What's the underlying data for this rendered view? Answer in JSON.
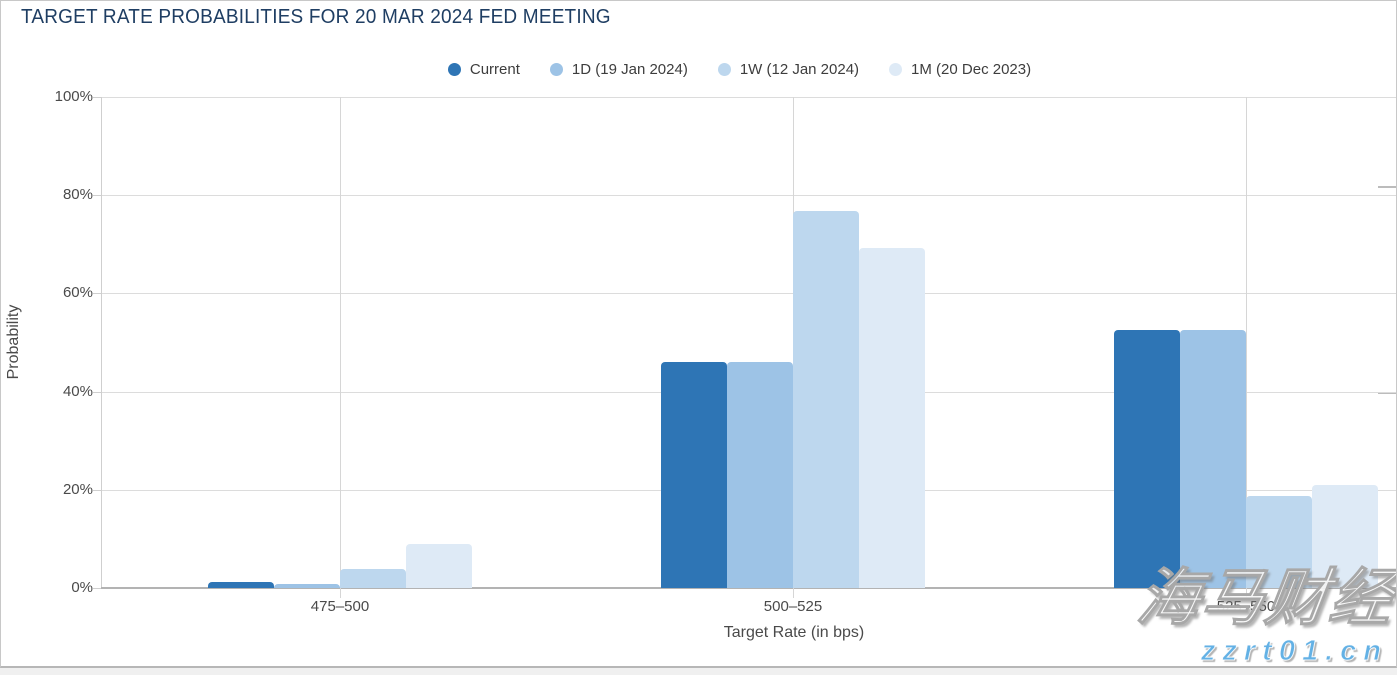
{
  "chart_data": {
    "type": "bar",
    "title": "TARGET RATE PROBABILITIES FOR 20 MAR 2024 FED MEETING",
    "xlabel": "Target Rate (in bps)",
    "ylabel": "Probability",
    "ylim": [
      0,
      100
    ],
    "grid": true,
    "legend_position": "top-center",
    "yticks": [
      "0%",
      "20%",
      "40%",
      "60%",
      "80%",
      "100%"
    ],
    "categories": [
      "475–500",
      "500–525",
      "525–550"
    ],
    "series": [
      {
        "name": "Current",
        "color": "#2E75B5",
        "values": [
          1.2,
          46.0,
          52.5
        ]
      },
      {
        "name": "1D (19 Jan 2024)",
        "color": "#9DC3E6",
        "values": [
          0.8,
          46.0,
          52.5
        ]
      },
      {
        "name": "1W (12 Jan 2024)",
        "color": "#BDD7EE",
        "values": [
          3.8,
          76.7,
          18.8
        ]
      },
      {
        "name": "1M (20 Dec 2023)",
        "color": "#DEEAF6",
        "values": [
          8.9,
          69.3,
          21.0
        ]
      }
    ]
  },
  "watermark": {
    "line1": "海马财经",
    "line2": "zzrt01.cn"
  }
}
